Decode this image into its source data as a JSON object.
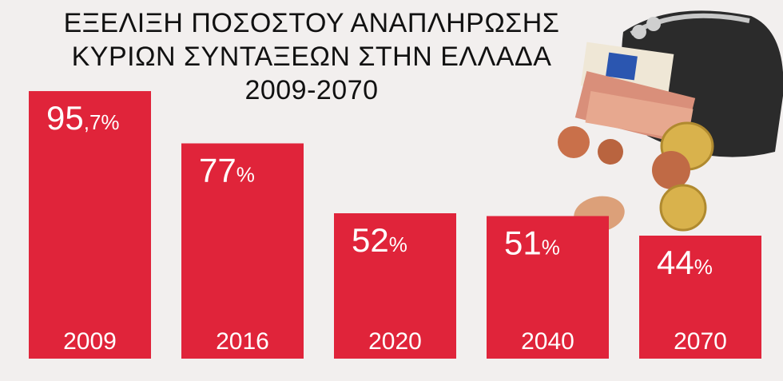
{
  "chart_data": {
    "type": "bar",
    "title_lines": [
      "ΕΞΕΛΙΞΗ ΠΟΣΟΣΤΟΥ ΑΝΑΠΛΗΡΩΣΗΣ",
      "ΚΥΡΙΩΝ ΣΥΝΤΑΞΕΩΝ ΣΤΗΝ ΕΛΛΑΔΑ",
      "2009-2070"
    ],
    "categories": [
      "2009",
      "2016",
      "2020",
      "2040",
      "2070"
    ],
    "values": [
      95.7,
      77,
      52,
      51,
      44
    ],
    "value_labels": [
      {
        "main": "95",
        "rest": ",7%"
      },
      {
        "main": "77",
        "rest": "%"
      },
      {
        "main": "52",
        "rest": "%"
      },
      {
        "main": "51",
        "rest": "%"
      },
      {
        "main": "44",
        "rest": "%"
      }
    ],
    "ylim": [
      0,
      100
    ],
    "bar_color": "#e0243a",
    "grid": false,
    "legend": "none"
  },
  "illustration": {
    "subject": "wallet-with-euro-notes-and-coins-icon",
    "colors": {
      "wallet": "#2b2b2b",
      "clasp": "#bfbfbf",
      "note": "#d98f7a",
      "coin_copper": "#c9704a",
      "coin_gold": "#d9b24c"
    }
  }
}
